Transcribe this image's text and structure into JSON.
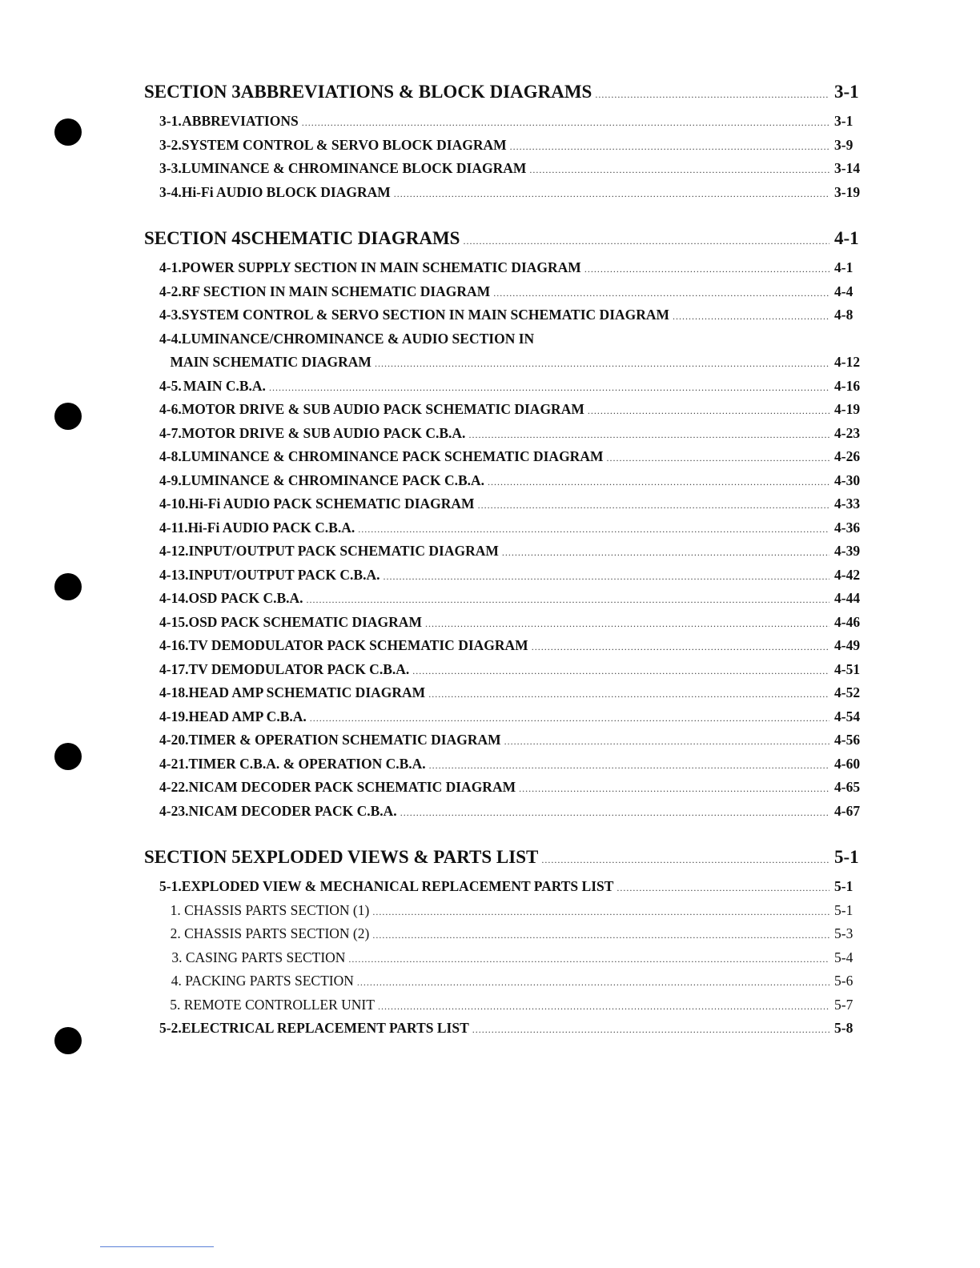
{
  "sections": [
    {
      "label": "SECTION 3",
      "title": "ABBREVIATIONS & BLOCK DIAGRAMS",
      "page": "3-1",
      "items": [
        {
          "num": "3-1.",
          "title": "ABBREVIATIONS",
          "page": "3-1"
        },
        {
          "num": "3-2.",
          "title": "SYSTEM CONTROL & SERVO BLOCK DIAGRAM",
          "page": "3-9"
        },
        {
          "num": "3-3.",
          "title": "LUMINANCE & CHROMINANCE BLOCK DIAGRAM",
          "page": "3-14"
        },
        {
          "num": "3-4.",
          "title": "Hi-Fi AUDIO BLOCK DIAGRAM",
          "page": "3-19"
        }
      ]
    },
    {
      "label": "SECTION 4",
      "title": "SCHEMATIC DIAGRAMS",
      "page": "4-1",
      "items": [
        {
          "num": "4-1.",
          "title": "POWER SUPPLY SECTION IN MAIN SCHEMATIC DIAGRAM",
          "page": "4-1"
        },
        {
          "num": "4-2.",
          "title": "RF SECTION IN MAIN SCHEMATIC DIAGRAM",
          "page": "4-4"
        },
        {
          "num": "4-3.",
          "title": "SYSTEM CONTROL & SERVO SECTION IN MAIN SCHEMATIC DIAGRAM",
          "page": "4-8"
        },
        {
          "num": "4-4.",
          "title": "LUMINANCE/CHROMINANCE & AUDIO SECTION IN",
          "continuation": "MAIN SCHEMATIC DIAGRAM",
          "page": "4-12"
        },
        {
          "num": "4-5.",
          "title": "MAIN C.B.A.",
          "page": "4-16"
        },
        {
          "num": "4-6.",
          "title": "MOTOR DRIVE & SUB AUDIO PACK SCHEMATIC DIAGRAM",
          "page": "4-19"
        },
        {
          "num": "4-7.",
          "title": "MOTOR DRIVE & SUB AUDIO PACK C.B.A.",
          "page": "4-23"
        },
        {
          "num": "4-8.",
          "title": "LUMINANCE & CHROMINANCE PACK SCHEMATIC DIAGRAM",
          "page": "4-26"
        },
        {
          "num": "4-9.",
          "title": "LUMINANCE & CHROMINANCE PACK C.B.A.",
          "page": "4-30"
        },
        {
          "num": "4-10.",
          "title": "Hi-Fi AUDIO PACK SCHEMATIC DIAGRAM",
          "page": "4-33"
        },
        {
          "num": "4-11.",
          "title": "Hi-Fi AUDIO PACK C.B.A.",
          "page": "4-36"
        },
        {
          "num": "4-12.",
          "title": "INPUT/OUTPUT PACK SCHEMATIC DIAGRAM",
          "page": "4-39"
        },
        {
          "num": "4-13.",
          "title": "INPUT/OUTPUT PACK C.B.A.",
          "page": "4-42"
        },
        {
          "num": "4-14.",
          "title": "OSD PACK C.B.A.",
          "page": "4-44"
        },
        {
          "num": "4-15.",
          "title": "OSD PACK SCHEMATIC DIAGRAM",
          "page": "4-46"
        },
        {
          "num": "4-16.",
          "title": "TV DEMODULATOR PACK SCHEMATIC DIAGRAM",
          "page": "4-49"
        },
        {
          "num": "4-17.",
          "title": "TV DEMODULATOR PACK C.B.A.",
          "page": "4-51"
        },
        {
          "num": "4-18.",
          "title": "HEAD AMP SCHEMATIC DIAGRAM",
          "page": "4-52"
        },
        {
          "num": "4-19.",
          "title": "HEAD AMP C.B.A.",
          "page": "4-54"
        },
        {
          "num": "4-20.",
          "title": "TIMER & OPERATION SCHEMATIC DIAGRAM",
          "page": "4-56"
        },
        {
          "num": "4-21.",
          "title": "TIMER C.B.A. & OPERATION C.B.A.",
          "page": "4-60"
        },
        {
          "num": "4-22.",
          "title": "NICAM DECODER PACK SCHEMATIC DIAGRAM",
          "page": "4-65"
        },
        {
          "num": "4-23.",
          "title": "NICAM DECODER PACK C.B.A.",
          "page": "4-67"
        }
      ]
    },
    {
      "label": "SECTION 5",
      "title": "EXPLODED VIEWS & PARTS LIST",
      "page": "5-1",
      "items": [
        {
          "num": "5-1.",
          "title": "EXPLODED VIEW & MECHANICAL REPLACEMENT PARTS LIST",
          "page": "5-1",
          "subitems": [
            {
              "title": "1. CHASSIS PARTS SECTION (1)",
              "page": "5-1"
            },
            {
              "title": "2. CHASSIS PARTS SECTION (2)",
              "page": "5-3"
            },
            {
              "title": "3. CASING PARTS SECTION",
              "page": "5-4"
            },
            {
              "title": "4. PACKING PARTS SECTION",
              "page": "5-6"
            },
            {
              "title": "5. REMOTE CONTROLLER UNIT",
              "page": "5-7"
            }
          ]
        },
        {
          "num": "5-2.",
          "title": "ELECTRICAL REPLACEMENT PARTS LIST",
          "page": "5-8"
        }
      ]
    }
  ]
}
